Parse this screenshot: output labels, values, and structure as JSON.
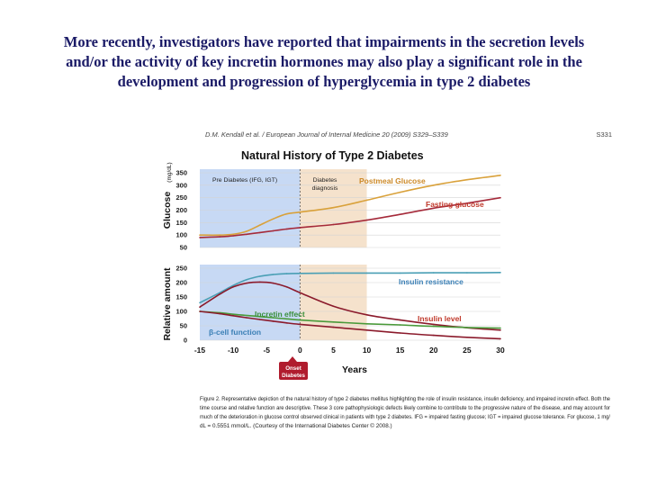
{
  "slide": {
    "headline_lines": [
      "More recently, investigators have reported that impairments in the secretion levels",
      "and/or the activity of key incretin hormones may also play a significant role in the",
      "development and progression of hyperglycemia in type 2 diabetes"
    ]
  },
  "figure": {
    "journal_ref": "D.M. Kendall et al. / European Journal of Internal Medicine 20 (2009) S329–S339",
    "page_number": "S331",
    "caption_lines": [
      "Figure 2. Representative depiction of the natural history of type 2 diabetes mellitus highlighting the role of insulin resistance, insulin deficiency, and impaired incretin effect. Both the",
      "time course and relative function are descriptive. These 3 core pathophysiologic defects likely combine to contribute to the progressive nature of the disease, and may account for",
      "much of the deterioration in glucose control observed clinical in patients with type 2 diabetes. IFG = impaired fasting glucose; IGT = impaired glucose tolerance. For glucose, 1 mg/",
      "dL = 0.5551 mmol/L. (Courtesy of the International Diabetes Center © 2008.)"
    ],
    "onset_badge": [
      "Onset",
      "Diabetes"
    ],
    "colors": {
      "prediabetes_band": "#c7d9f4",
      "diagnosis_band": "#f5e2cc",
      "postmeal": "#d9a13a",
      "fasting": "#a52a3a",
      "insulin_resistance": "#4a9fb5",
      "insulin_level": "#8b1a2b",
      "incretin": "#4a9a3a",
      "beta_cell": "#8b1a2b",
      "onset_badge": "#b01c2e",
      "label_red": "#c0392b",
      "label_orange": "#cc8a2a",
      "label_blue": "#3a7fb5",
      "label_green": "#3a8f3a"
    }
  },
  "chart_data": [
    {
      "type": "line",
      "title": "Natural History of Type 2 Diabetes",
      "ylabel": "Glucose",
      "yunit": "(mg/dL)",
      "ylim": [
        50,
        350
      ],
      "yticks": [
        50,
        100,
        150,
        200,
        250,
        300,
        350
      ],
      "xlim": [
        -15,
        30
      ],
      "x": [
        -15,
        -12,
        -10,
        -8,
        -6,
        -4,
        -2,
        0,
        5,
        10,
        15,
        20,
        25,
        30
      ],
      "bands": [
        {
          "label": "Pre Diabetes",
          "sublabel": "(IFG, IGT)",
          "from": -15,
          "to": 0
        },
        {
          "label": "Diabetes",
          "sublabel": "diagnosis",
          "from": 0,
          "to": 10
        }
      ],
      "series": [
        {
          "name": "Postmeal Glucose",
          "color_key": "postmeal",
          "label_color_key": "label_orange",
          "values": [
            100,
            100,
            103,
            115,
            140,
            165,
            185,
            192,
            210,
            240,
            272,
            300,
            322,
            340
          ]
        },
        {
          "name": "Fasting glucose",
          "color_key": "fasting",
          "label_color_key": "label_red",
          "values": [
            90,
            93,
            97,
            103,
            110,
            117,
            124,
            130,
            142,
            160,
            183,
            208,
            228,
            250
          ]
        }
      ]
    },
    {
      "type": "line",
      "ylabel": "Relative amount",
      "ylim": [
        0,
        250
      ],
      "yticks": [
        0,
        50,
        100,
        150,
        200,
        250
      ],
      "xlim": [
        -15,
        30
      ],
      "xticks": [
        -15,
        -10,
        -5,
        0,
        5,
        10,
        15,
        20,
        25,
        30
      ],
      "xlabel": "Years",
      "x": [
        -15,
        -12,
        -10,
        -8,
        -6,
        -4,
        -2,
        0,
        5,
        10,
        15,
        20,
        25,
        30
      ],
      "series": [
        {
          "name": "Insulin resistance",
          "color_key": "insulin_resistance",
          "label_color_key": "label_blue",
          "values": [
            130,
            165,
            190,
            210,
            222,
            228,
            231,
            232,
            233,
            233,
            233,
            234,
            234,
            235
          ]
        },
        {
          "name": "Insulin level",
          "color_key": "insulin_level",
          "label_color_key": "label_red",
          "values": [
            115,
            160,
            185,
            198,
            202,
            198,
            185,
            165,
            118,
            88,
            70,
            55,
            43,
            35
          ]
        },
        {
          "name": "Incretin effect",
          "color_key": "incretin",
          "label_color_key": "label_green",
          "values": [
            100,
            95,
            90,
            86,
            82,
            78,
            74,
            70,
            63,
            57,
            53,
            48,
            44,
            42
          ]
        },
        {
          "name": "β-cell function",
          "color_key": "beta_cell",
          "label_color_key": "label_blue",
          "values": [
            100,
            92,
            85,
            78,
            72,
            66,
            60,
            55,
            45,
            35,
            25,
            17,
            10,
            5
          ]
        }
      ]
    }
  ]
}
